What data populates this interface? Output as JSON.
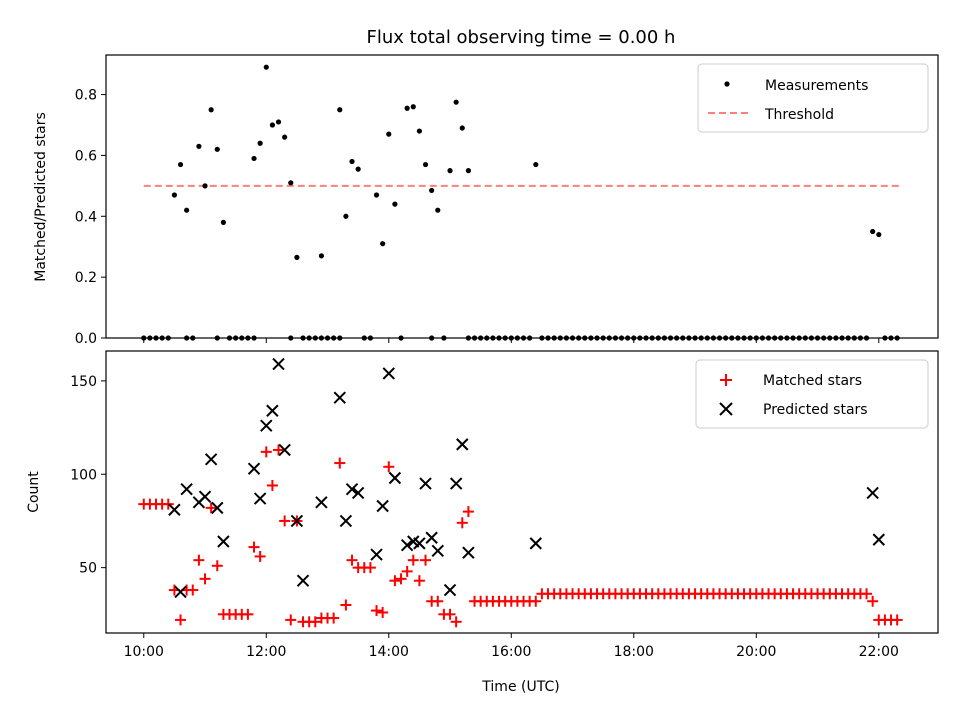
{
  "chart_data": [
    {
      "type": "scatter",
      "title": "Flux total observing time = 0.00 h",
      "xlabel": "",
      "ylabel": "Matched/Predicted stars",
      "xlim": [
        "09:23",
        "22:58"
      ],
      "ylim": [
        0,
        0.93
      ],
      "yticks": [
        0.0,
        0.2,
        0.4,
        0.6,
        0.8
      ],
      "ytick_labels": [
        "0.0",
        "0.2",
        "0.4",
        "0.6",
        "0.8"
      ],
      "xticks": [
        "10:00",
        "12:00",
        "14:00",
        "16:00",
        "18:00",
        "20:00",
        "22:00"
      ],
      "grid": false,
      "legend": {
        "placement": "top-right",
        "entries": [
          {
            "label": "Measurements",
            "marker": "dot",
            "color": "#000000"
          },
          {
            "label": "Threshold",
            "marker": "dashed-line",
            "color": "#ff7f7f"
          }
        ]
      },
      "threshold": {
        "y": 0.5,
        "x_start": "10:00",
        "x_end": "22:20"
      },
      "series": [
        {
          "name": "Measurements",
          "x": [
            "10:30",
            "10:36",
            "10:42",
            "10:54",
            "11:00",
            "11:06",
            "11:12",
            "11:18",
            "11:48",
            "11:54",
            "12:00",
            "12:06",
            "12:12",
            "12:18",
            "12:24",
            "12:30",
            "12:54",
            "13:12",
            "13:18",
            "13:24",
            "13:30",
            "13:48",
            "13:54",
            "14:00",
            "14:06",
            "14:18",
            "14:24",
            "14:30",
            "14:36",
            "14:42",
            "14:48",
            "15:00",
            "15:06",
            "15:12",
            "15:18",
            "16:24",
            "21:54",
            "22:00"
          ],
          "y": [
            0.47,
            0.57,
            0.42,
            0.63,
            0.5,
            0.75,
            0.62,
            0.38,
            0.59,
            0.64,
            0.89,
            0.7,
            0.71,
            0.66,
            0.51,
            0.265,
            0.27,
            0.75,
            0.4,
            0.58,
            0.555,
            0.47,
            0.31,
            0.67,
            0.44,
            0.755,
            0.76,
            0.68,
            0.57,
            0.485,
            0.42,
            0.55,
            0.775,
            0.69,
            0.55,
            0.57,
            0.35,
            0.34
          ]
        },
        {
          "name": "Measurements (zero)",
          "x": [
            "10:00",
            "10:06",
            "10:12",
            "10:18",
            "10:24",
            "10:42",
            "10:48",
            "11:12",
            "11:24",
            "11:30",
            "11:36",
            "11:42",
            "11:48",
            "12:24",
            "12:36",
            "12:42",
            "12:48",
            "12:54",
            "13:00",
            "13:06",
            "13:12",
            "13:36",
            "13:42",
            "14:12",
            "14:42",
            "14:54",
            "15:18",
            "15:24",
            "15:30",
            "15:36",
            "15:42",
            "15:48",
            "15:54",
            "16:00",
            "16:06",
            "16:12",
            "16:18",
            "16:30",
            "16:36",
            "16:42",
            "16:48",
            "16:54",
            "17:00",
            "17:06",
            "17:12",
            "17:18",
            "17:24",
            "17:30",
            "17:36",
            "17:42",
            "17:48",
            "17:54",
            "18:00",
            "18:06",
            "18:12",
            "18:18",
            "18:24",
            "18:30",
            "18:36",
            "18:42",
            "18:48",
            "18:54",
            "19:00",
            "19:06",
            "19:12",
            "19:18",
            "19:24",
            "19:30",
            "19:36",
            "19:42",
            "19:48",
            "19:54",
            "20:00",
            "20:06",
            "20:12",
            "20:18",
            "20:24",
            "20:30",
            "20:36",
            "20:42",
            "20:48",
            "20:54",
            "21:00",
            "21:06",
            "21:12",
            "21:18",
            "21:24",
            "21:30",
            "21:36",
            "21:42",
            "21:48",
            "22:06",
            "22:12",
            "22:18"
          ],
          "y": 0
        }
      ]
    },
    {
      "type": "scatter",
      "title": "",
      "xlabel": "Time (UTC)",
      "ylabel": "Count",
      "xlim": [
        "09:23",
        "22:58"
      ],
      "ylim": [
        15,
        166
      ],
      "yticks": [
        50,
        100,
        150
      ],
      "ytick_labels": [
        "50",
        "100",
        "150"
      ],
      "xticks": [
        "10:00",
        "12:00",
        "14:00",
        "16:00",
        "18:00",
        "20:00",
        "22:00"
      ],
      "xtick_labels": [
        "10:00",
        "12:00",
        "14:00",
        "16:00",
        "18:00",
        "20:00",
        "22:00"
      ],
      "grid": false,
      "legend": {
        "placement": "top-right",
        "entries": [
          {
            "label": "Matched stars",
            "marker": "plus",
            "color": "#ff0000"
          },
          {
            "label": "Predicted stars",
            "marker": "x",
            "color": "#000000"
          }
        ]
      },
      "series": [
        {
          "name": "Matched stars",
          "x": [
            "10:00",
            "10:06",
            "10:12",
            "10:18",
            "10:24",
            "10:30",
            "10:36",
            "10:42",
            "10:48",
            "10:54",
            "11:00",
            "11:06",
            "11:12",
            "11:18",
            "11:24",
            "11:30",
            "11:36",
            "11:42",
            "11:48",
            "11:54",
            "12:00",
            "12:06",
            "12:12",
            "12:18",
            "12:24",
            "12:30",
            "12:36",
            "12:42",
            "12:48",
            "12:54",
            "13:00",
            "13:06",
            "13:12",
            "13:18",
            "13:24",
            "13:30",
            "13:36",
            "13:42",
            "13:48",
            "13:54",
            "14:00",
            "14:06",
            "14:12",
            "14:18",
            "14:24",
            "14:30",
            "14:36",
            "14:42",
            "14:48",
            "14:54",
            "15:00",
            "15:06",
            "15:12",
            "15:18",
            "15:24",
            "15:30",
            "15:36",
            "15:42",
            "15:48",
            "15:54",
            "16:00",
            "16:06",
            "16:12",
            "16:18",
            "16:24",
            "16:30",
            "16:36",
            "16:42",
            "16:48",
            "16:54",
            "17:00",
            "17:06",
            "17:12",
            "17:18",
            "17:24",
            "17:30",
            "17:36",
            "17:42",
            "17:48",
            "17:54",
            "18:00",
            "18:06",
            "18:12",
            "18:18",
            "18:24",
            "18:30",
            "18:36",
            "18:42",
            "18:48",
            "18:54",
            "19:00",
            "19:06",
            "19:12",
            "19:18",
            "19:24",
            "19:30",
            "19:36",
            "19:42",
            "19:48",
            "19:54",
            "20:00",
            "20:06",
            "20:12",
            "20:18",
            "20:24",
            "20:30",
            "20:36",
            "20:42",
            "20:48",
            "20:54",
            "21:00",
            "21:06",
            "21:12",
            "21:18",
            "21:24",
            "21:30",
            "21:36",
            "21:42",
            "21:48",
            "21:54",
            "22:00",
            "22:06",
            "22:12",
            "22:18"
          ],
          "y": [
            84,
            84,
            84,
            84,
            84,
            38,
            22,
            38,
            38,
            54,
            44,
            82,
            51,
            25,
            25,
            25,
            25,
            25,
            61,
            56,
            112,
            94,
            113,
            75,
            22,
            75,
            21,
            21,
            21,
            23,
            23,
            23,
            106,
            30,
            54,
            50,
            50,
            50,
            27,
            26,
            104,
            43,
            44,
            48,
            54,
            43,
            54,
            32,
            32,
            25,
            25,
            21,
            74,
            80,
            32,
            32,
            32,
            32,
            32,
            32,
            32,
            32,
            32,
            32,
            32,
            36,
            36,
            36,
            36,
            36,
            36,
            36,
            36,
            36,
            36,
            36,
            36,
            36,
            36,
            36,
            36,
            36,
            36,
            36,
            36,
            36,
            36,
            36,
            36,
            36,
            36,
            36,
            36,
            36,
            36,
            36,
            36,
            36,
            36,
            36,
            36,
            36,
            36,
            36,
            36,
            36,
            36,
            36,
            36,
            36,
            36,
            36,
            36,
            36,
            36,
            36,
            36,
            36,
            36,
            32,
            22,
            22,
            22,
            22
          ]
        },
        {
          "name": "Predicted stars",
          "x": [
            "10:30",
            "10:36",
            "10:42",
            "10:54",
            "11:00",
            "11:06",
            "11:12",
            "11:18",
            "11:48",
            "11:54",
            "12:00",
            "12:06",
            "12:12",
            "12:18",
            "12:30",
            "12:36",
            "12:54",
            "13:12",
            "13:18",
            "13:24",
            "13:30",
            "13:48",
            "13:54",
            "14:00",
            "14:06",
            "14:18",
            "14:24",
            "14:30",
            "14:36",
            "14:42",
            "14:48",
            "15:00",
            "15:06",
            "15:12",
            "15:18",
            "16:24",
            "21:54",
            "22:00"
          ],
          "y": [
            81,
            37,
            92,
            85,
            88,
            108,
            82,
            64,
            103,
            87,
            126,
            134,
            159,
            113,
            75,
            43,
            85,
            141,
            75,
            92,
            90,
            57,
            83,
            154,
            98,
            62,
            64,
            63,
            95,
            66,
            59,
            38,
            95,
            116,
            58,
            63,
            90,
            65
          ]
        }
      ]
    }
  ]
}
